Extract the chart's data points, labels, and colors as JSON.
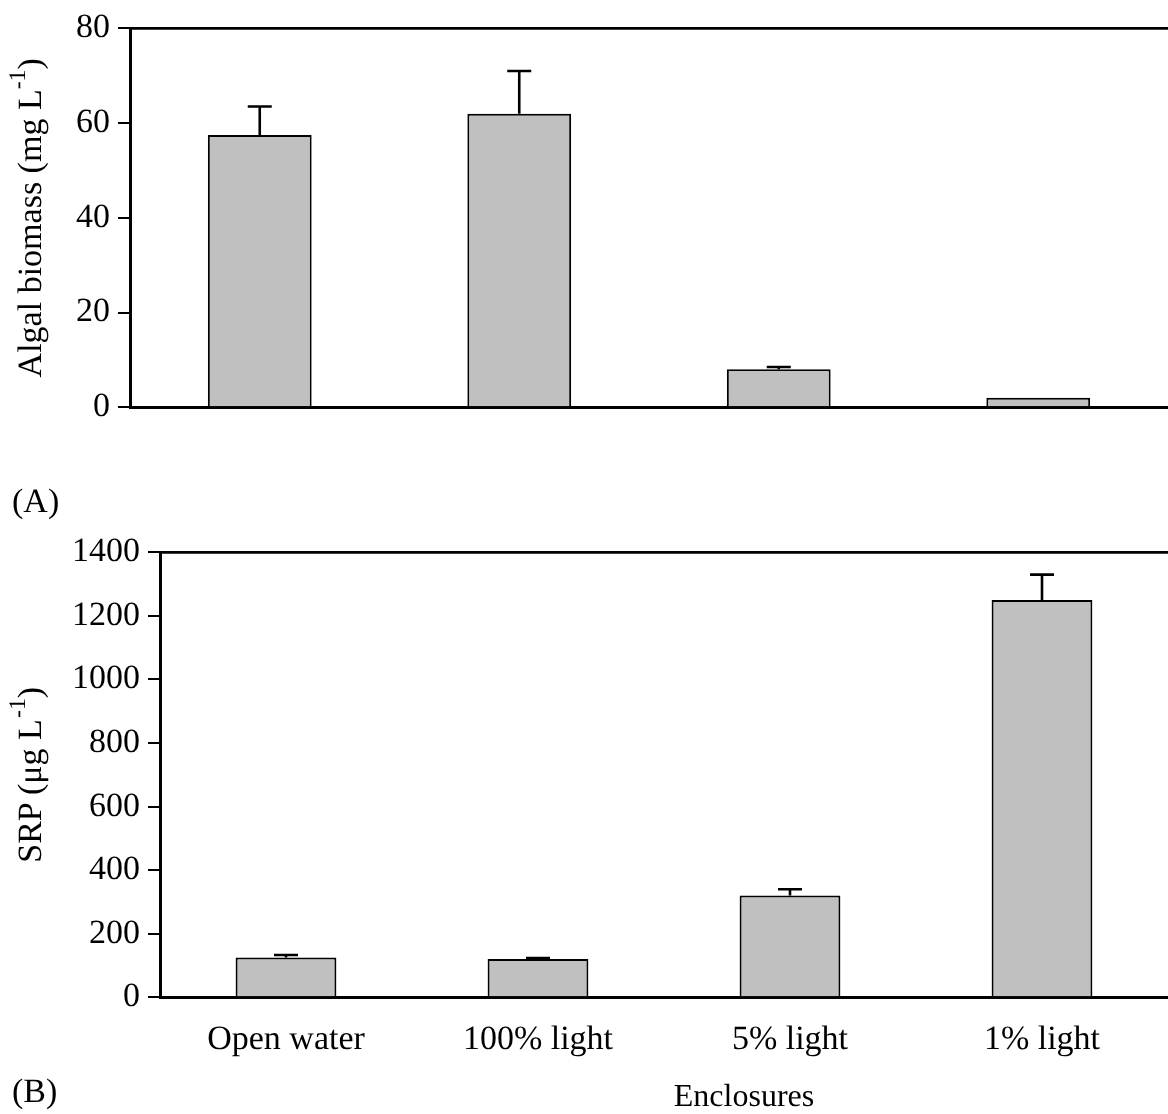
{
  "chart_data": [
    {
      "type": "bar",
      "ylabel": "Algal biomass (mg L$^{-1}$)",
      "categories": [
        null,
        null,
        null,
        null
      ],
      "values": [
        57.5,
        62,
        8,
        2
      ],
      "errors": [
        [
          57.5,
          63.5
        ],
        [
          62,
          71
        ],
        [
          8,
          8.5
        ],
        null
      ],
      "color": "#c0c0c0",
      "ylim": [
        0,
        80
      ],
      "yticks": [
        0,
        20,
        40,
        60,
        80
      ],
      "grid": false,
      "legend": false,
      "annotations": [
        "(A)"
      ]
    },
    {
      "type": "bar",
      "ylabel": "SRP (μg L$^{-1}$)",
      "xlabel": "Enclosures",
      "categories": [
        "Open water",
        "100% light",
        "5% light",
        "1% light"
      ],
      "values": [
        125,
        120,
        320,
        1250
      ],
      "errors": [
        [
          125,
          133
        ],
        [
          120,
          123
        ],
        [
          320,
          340
        ],
        [
          1250,
          1330
        ]
      ],
      "color": "#c0c0c0",
      "ylim": [
        0,
        1400
      ],
      "yticks": [
        0,
        200,
        400,
        600,
        800,
        1000,
        1200,
        1400
      ],
      "grid": false,
      "legend": false,
      "annotations": [
        "(B)"
      ]
    }
  ]
}
